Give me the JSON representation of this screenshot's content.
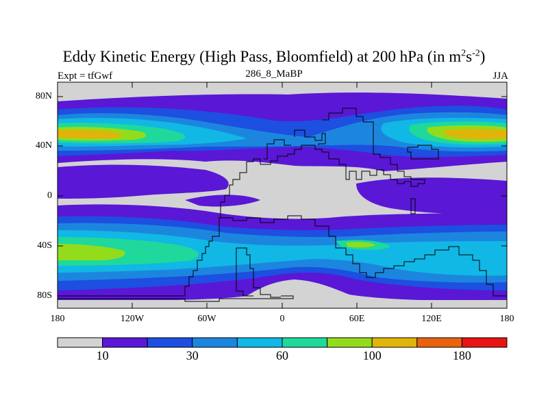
{
  "title": {
    "main": "Eddy Kinetic Energy (High Pass, Bloomfield) at 200 hPa (in m",
    "sup1": "2",
    "mid": "s",
    "sup2": "-2",
    "end": ")"
  },
  "subtitle": "286_8_MaBP",
  "left_label": "Expt = tfGwf",
  "right_label": "JJA",
  "axes": {
    "y_ticks": [
      "80N",
      "40N",
      "0",
      "40S",
      "80S"
    ],
    "x_ticks": [
      "180",
      "120W",
      "60W",
      "0",
      "60E",
      "120E",
      "180"
    ]
  },
  "colorbar": {
    "colors": [
      "#d3d3d3",
      "#5a17d6",
      "#1d4fe0",
      "#1c86df",
      "#11b7e5",
      "#1ed99b",
      "#93dc1b",
      "#e0b40a",
      "#e9630e",
      "#e81414"
    ],
    "labels": [
      {
        "text": "10",
        "boundary": 1
      },
      {
        "text": "30",
        "boundary": 3
      },
      {
        "text": "60",
        "boundary": 5
      },
      {
        "text": "100",
        "boundary": 7
      },
      {
        "text": "180",
        "boundary": 9
      }
    ]
  }
}
